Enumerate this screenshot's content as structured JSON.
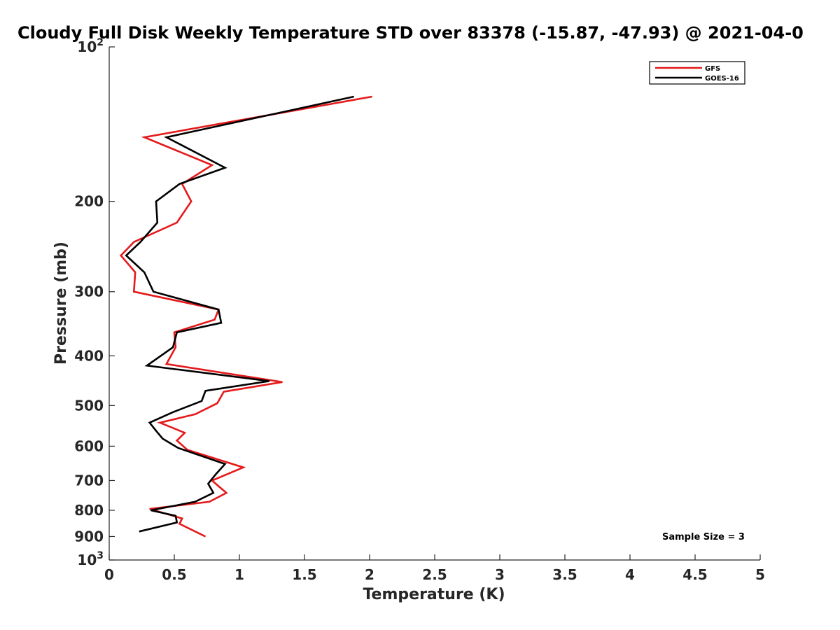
{
  "chart_data": {
    "type": "line",
    "title": "Cloudy Full Disk Weekly Temperature STD over 83378 (-15.87, -47.93) @ 2021-04-0",
    "xlabel": "Temperature (K)",
    "ylabel": "Pressure (mb)",
    "xlim": [
      0,
      5
    ],
    "ylim": [
      1000,
      100
    ],
    "y_scale": "log",
    "y_reversed": true,
    "grid": false,
    "legend_position": "top-right",
    "x_ticks": [
      0,
      0.5,
      1,
      1.5,
      2,
      2.5,
      3,
      3.5,
      4,
      4.5,
      5
    ],
    "x_tick_labels": [
      "0",
      "0.5",
      "1",
      "1.5",
      "2",
      "2.5",
      "3",
      "3.5",
      "4",
      "4.5",
      "5"
    ],
    "y_ticks": [
      100,
      200,
      300,
      400,
      500,
      600,
      700,
      800,
      900,
      1000
    ],
    "y_tick_labels": [
      {
        "base": "10",
        "exp": "2"
      },
      {
        "base": "200",
        "exp": ""
      },
      {
        "base": "300",
        "exp": ""
      },
      {
        "base": "400",
        "exp": ""
      },
      {
        "base": "500",
        "exp": ""
      },
      {
        "base": "600",
        "exp": ""
      },
      {
        "base": "700",
        "exp": ""
      },
      {
        "base": "800",
        "exp": ""
      },
      {
        "base": "900",
        "exp": ""
      },
      {
        "base": "10",
        "exp": "3"
      }
    ],
    "annotation": "Sample Size = 3",
    "series": [
      {
        "name": "GFS",
        "color": "#e41a1c",
        "x": [
          2.02,
          0.27,
          0.79,
          0.56,
          0.63,
          0.52,
          0.19,
          0.09,
          0.2,
          0.19,
          0.84,
          0.81,
          0.5,
          0.51,
          0.44,
          1.33,
          0.88,
          0.83,
          0.66,
          0.39,
          0.58,
          0.52,
          0.6,
          1.03,
          0.79,
          0.9,
          0.77,
          0.31,
          0.56,
          0.54,
          0.74
        ],
        "y": [
          125,
          150,
          170,
          185,
          200,
          220,
          240,
          255,
          275,
          300,
          325,
          340,
          360,
          385,
          415,
          450,
          470,
          495,
          520,
          540,
          565,
          585,
          610,
          660,
          700,
          740,
          770,
          795,
          830,
          850,
          900
        ]
      },
      {
        "name": "GOES-16",
        "color": "#000000",
        "x": [
          1.88,
          0.44,
          0.89,
          0.54,
          0.36,
          0.37,
          0.24,
          0.13,
          0.27,
          0.34,
          0.84,
          0.86,
          0.52,
          0.49,
          0.29,
          1.23,
          0.74,
          0.71,
          0.49,
          0.31,
          0.36,
          0.41,
          0.53,
          0.89,
          0.82,
          0.76,
          0.8,
          0.66,
          0.32,
          0.51,
          0.52,
          0.23
        ],
        "y": [
          125,
          150,
          172,
          185,
          200,
          220,
          240,
          255,
          275,
          300,
          325,
          345,
          360,
          385,
          418,
          448,
          468,
          490,
          515,
          540,
          560,
          580,
          605,
          650,
          680,
          710,
          740,
          770,
          800,
          820,
          845,
          880
        ]
      }
    ]
  }
}
